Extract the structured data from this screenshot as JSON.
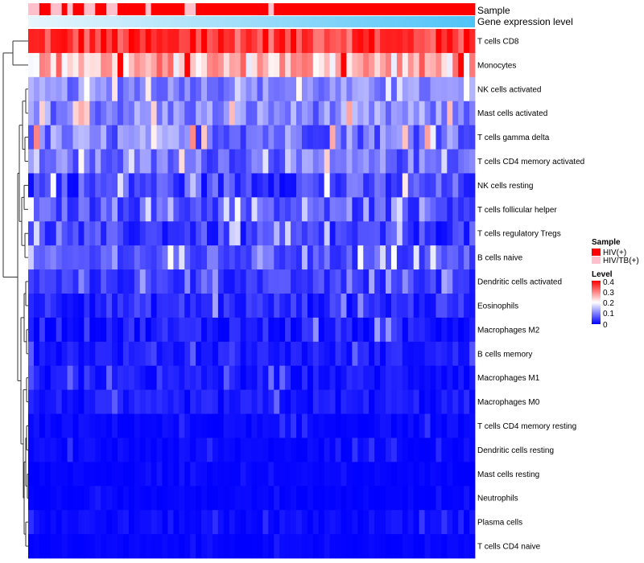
{
  "chart_data": {
    "type": "heatmap",
    "title": "",
    "annotation_labels": {
      "sample": "Sample",
      "expression": "Gene expression level"
    },
    "legend": {
      "sample_title": "Sample",
      "sample_entries": [
        {
          "label": "HIV(+)",
          "color": "#ff0000"
        },
        {
          "label": "HIV/TB(+)",
          "color": "#ffc0cb"
        }
      ],
      "level_title": "Level",
      "level_ticks": [
        "0.4",
        "0.3",
        "0.2",
        "0.1",
        "0"
      ],
      "level_range": [
        0,
        0.4
      ],
      "colors": {
        "low": "#0000ff",
        "mid": "#ffffff",
        "high": "#ff0000"
      }
    },
    "expression_bar_colors": [
      "#e8f6fd",
      "#4fc3f7"
    ],
    "samples": [
      "HIV/TB(+)",
      "HIV/TB(+)",
      "HIV(+)",
      "HIV(+)",
      "HIV/TB(+)",
      "HIV/TB(+)",
      "HIV(+)",
      "HIV/TB(+)",
      "HIV(+)",
      "HIV(+)",
      "HIV/TB(+)",
      "HIV/TB(+)",
      "HIV(+)",
      "HIV(+)",
      "HIV/TB(+)",
      "HIV/TB(+)",
      "HIV(+)",
      "HIV(+)",
      "HIV(+)",
      "HIV(+)",
      "HIV(+)",
      "HIV/TB(+)",
      "HIV(+)",
      "HIV(+)",
      "HIV(+)",
      "HIV(+)",
      "HIV(+)",
      "HIV(+)",
      "HIV/TB(+)",
      "HIV/TB(+)",
      "HIV(+)",
      "HIV(+)",
      "HIV(+)",
      "HIV(+)",
      "HIV(+)",
      "HIV(+)",
      "HIV(+)",
      "HIV(+)",
      "HIV(+)",
      "HIV(+)",
      "HIV(+)",
      "HIV(+)",
      "HIV(+)",
      "HIV/TB(+)",
      "HIV(+)",
      "HIV(+)",
      "HIV(+)",
      "HIV(+)",
      "HIV(+)",
      "HIV(+)",
      "HIV(+)",
      "HIV(+)",
      "HIV(+)",
      "HIV(+)",
      "HIV(+)",
      "HIV(+)",
      "HIV(+)",
      "HIV(+)",
      "HIV(+)",
      "HIV(+)",
      "HIV(+)",
      "HIV(+)",
      "HIV(+)",
      "HIV(+)",
      "HIV(+)",
      "HIV(+)",
      "HIV(+)",
      "HIV(+)",
      "HIV(+)",
      "HIV(+)",
      "HIV(+)",
      "HIV(+)",
      "HIV(+)",
      "HIV(+)",
      "HIV(+)",
      "HIV(+)",
      "HIV(+)",
      "HIV(+)",
      "HIV(+)",
      "HIV(+)"
    ],
    "rows": [
      {
        "label": "T cells CD8",
        "base": 0.35,
        "var": 0.06
      },
      {
        "label": "Monocytes",
        "base": 0.25,
        "var": 0.08
      },
      {
        "label": "NK cells activated",
        "base": 0.1,
        "var": 0.04
      },
      {
        "label": "Mast cells activated",
        "base": 0.1,
        "var": 0.05
      },
      {
        "label": "T cells gamma delta",
        "base": 0.09,
        "var": 0.06
      },
      {
        "label": "T cells CD4 memory activated",
        "base": 0.08,
        "var": 0.05
      },
      {
        "label": "NK cells resting",
        "base": 0.05,
        "var": 0.05
      },
      {
        "label": "T cells follicular helper",
        "base": 0.06,
        "var": 0.04
      },
      {
        "label": "T cells regulatory  Tregs",
        "base": 0.04,
        "var": 0.04
      },
      {
        "label": "B cells naive",
        "base": 0.06,
        "var": 0.04
      },
      {
        "label": "Dendritic cells activated",
        "base": 0.04,
        "var": 0.03
      },
      {
        "label": "Eosinophils",
        "base": 0.03,
        "var": 0.03
      },
      {
        "label": "Macrophages M2",
        "base": 0.02,
        "var": 0.03
      },
      {
        "label": "B cells memory",
        "base": 0.02,
        "var": 0.02
      },
      {
        "label": "Macrophages M1",
        "base": 0.015,
        "var": 0.02
      },
      {
        "label": "Macrophages M0",
        "base": 0.015,
        "var": 0.02
      },
      {
        "label": "T cells CD4 memory resting",
        "base": 0.005,
        "var": 0.01
      },
      {
        "label": "Dendritic cells resting",
        "base": 0.005,
        "var": 0.01
      },
      {
        "label": "Mast cells resting",
        "base": 0.003,
        "var": 0.005
      },
      {
        "label": "Neutrophils",
        "base": 0.003,
        "var": 0.005
      },
      {
        "label": "Plasma cells",
        "base": 0.008,
        "var": 0.012
      },
      {
        "label": "T cells CD4 naive",
        "base": 0.003,
        "var": 0.005
      }
    ]
  }
}
